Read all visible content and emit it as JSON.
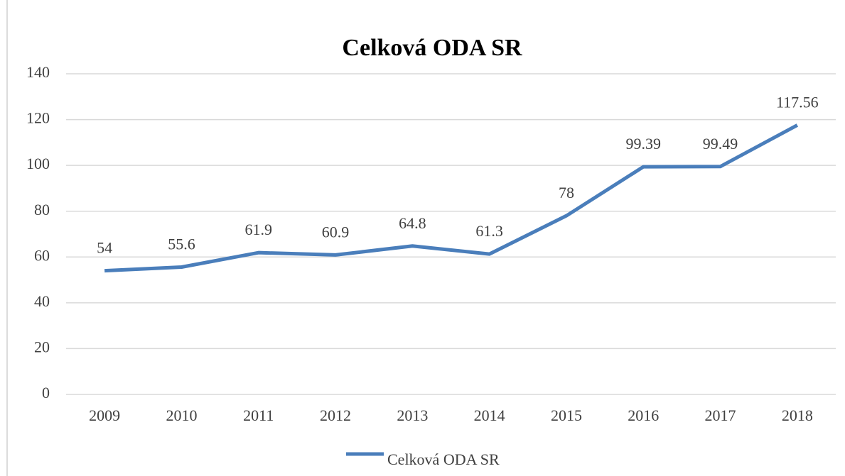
{
  "chart_data": {
    "type": "line",
    "title": "Celková ODA SR",
    "categories": [
      "2009",
      "2010",
      "2011",
      "2012",
      "2013",
      "2014",
      "2015",
      "2016",
      "2017",
      "2018"
    ],
    "series": [
      {
        "name": "Celková ODA SR",
        "color": "#4a7ebb",
        "values": [
          54,
          55.6,
          61.9,
          60.9,
          64.8,
          61.3,
          78,
          99.39,
          99.49,
          117.56
        ]
      }
    ],
    "ylim": [
      0,
      140
    ],
    "yticks": [
      0,
      20,
      40,
      60,
      80,
      100,
      120,
      140
    ],
    "grid": true,
    "legend": "bottom",
    "data_labels": true
  }
}
